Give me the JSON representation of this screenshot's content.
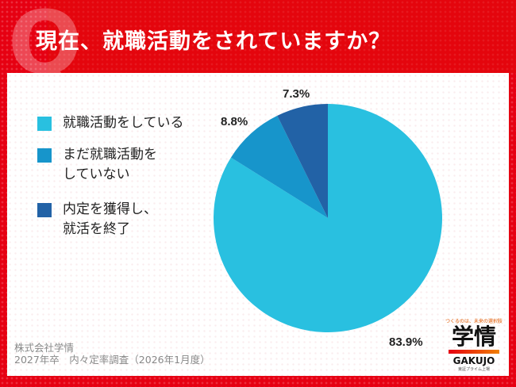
{
  "title": "現在、就職活動をされていますか？",
  "q_mark": "Q",
  "colors": {
    "frame": "#e60012",
    "s1": "#29c0e0",
    "s2": "#1795cb",
    "s3": "#2262a6"
  },
  "legend": [
    {
      "lines": [
        "就職活動をしている"
      ]
    },
    {
      "lines": [
        "まだ就職活動を",
        "していない"
      ]
    },
    {
      "lines": [
        "内定を獲得し、",
        "就活を終了"
      ]
    }
  ],
  "chart_data": {
    "type": "pie",
    "categories": [
      "就職活動をしている",
      "まだ就職活動をしていない",
      "内定を獲得し、就活を終了"
    ],
    "values": [
      83.9,
      8.8,
      7.3
    ],
    "labels": [
      "83.9%",
      "8.8%",
      "7.3%"
    ],
    "colors": [
      "#29c0e0",
      "#1795cb",
      "#2262a6"
    ],
    "start": "12 o'clock, clockwise from first category",
    "legend_position": "left"
  },
  "footer": {
    "line1": "株式会社学情",
    "line2": "2027年卒　内々定率調査（2026年1月度）"
  },
  "logo": {
    "tagline": "つくるのは、未来の選択肢",
    "name": "学情",
    "roman": "GAKUJO",
    "sub": "東証プライム上場"
  }
}
